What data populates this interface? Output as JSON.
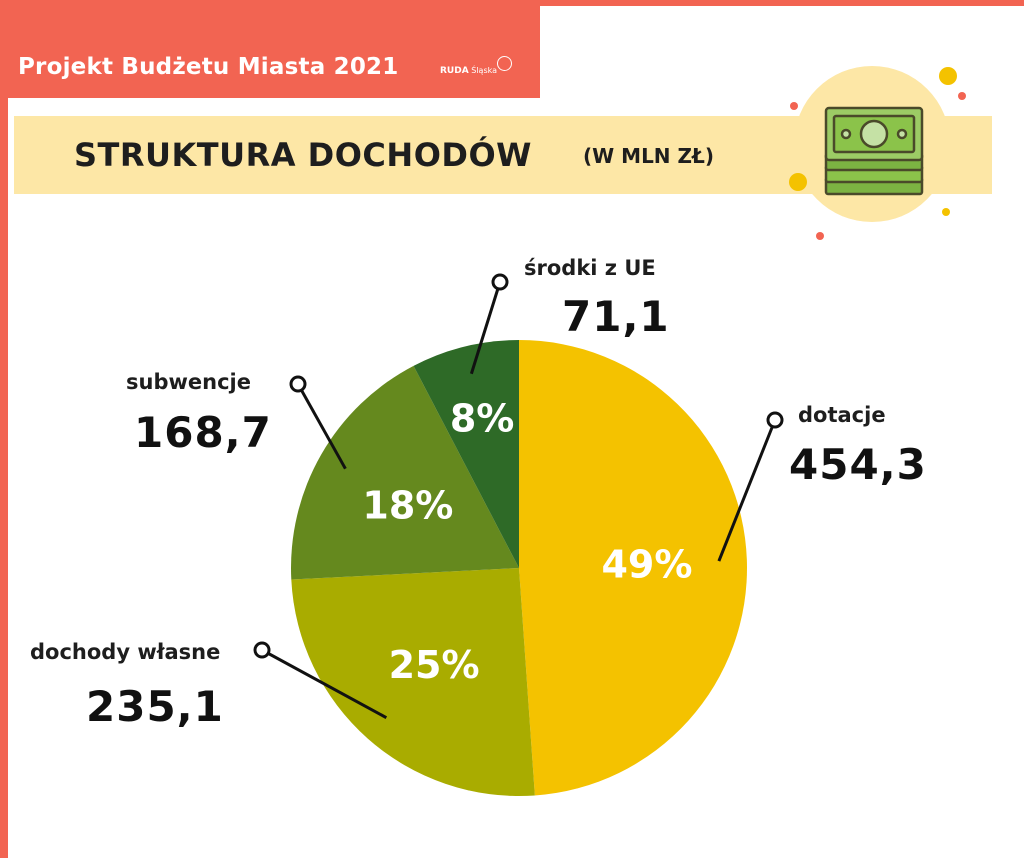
{
  "header": {
    "title": "Projekt Budżetu Miasta 2021",
    "logo_bold": "RUDA",
    "logo_rest": "Śląska"
  },
  "heading": {
    "title": "STRUKTURA DOCHODÓW",
    "unit": "(W MLN ZŁ)"
  },
  "illustration": {
    "icon": "money-stack-icon"
  },
  "colors": {
    "accent": "#f26452",
    "band": "#fde7a6",
    "dotacje": "#f4c200",
    "dochody_wlasne": "#a9ac00",
    "subwencje": "#65891e",
    "srodki_ue": "#2e6a27"
  },
  "chart_data": {
    "type": "pie",
    "title": "STRUKTURA DOCHODÓW",
    "unit": "(W MLN ZŁ)",
    "slices": [
      {
        "label": "dotacje",
        "value": 454.3,
        "display_value": "454,3",
        "percent": "49%",
        "color": "#f4c200"
      },
      {
        "label": "dochody własne",
        "value": 235.1,
        "display_value": "235,1",
        "percent": "25%",
        "color": "#a9ac00"
      },
      {
        "label": "subwencje",
        "value": 168.7,
        "display_value": "168,7",
        "percent": "18%",
        "color": "#65891e"
      },
      {
        "label": "środki z UE",
        "value": 71.1,
        "display_value": "71,1",
        "percent": "8%",
        "color": "#2e6a27"
      }
    ]
  }
}
